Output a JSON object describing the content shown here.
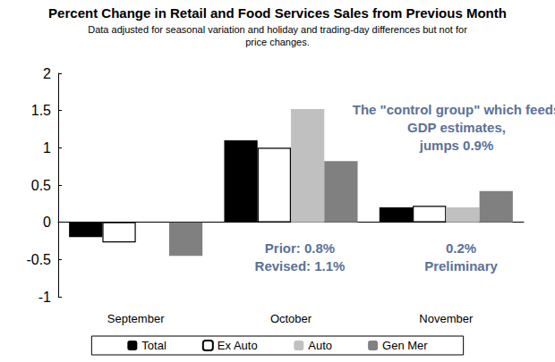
{
  "chart_data": {
    "type": "bar",
    "title": "Percent Change in Retail and Food Services Sales from Previous Month",
    "subtitle": "Data adjusted for seasonal variation and holiday and trading-day differences but not for\nprice changes.",
    "categories": [
      "September",
      "October",
      "November"
    ],
    "series": [
      {
        "name": "Total",
        "color": "#000000",
        "values": [
          -0.2,
          1.1,
          0.2
        ]
      },
      {
        "name": "Ex Auto",
        "color": "#ffffff",
        "values": [
          -0.27,
          1.0,
          0.22
        ]
      },
      {
        "name": "Auto",
        "color": "#c0c0c0",
        "values": [
          0,
          1.52,
          0.2
        ]
      },
      {
        "name": "Gen Mer",
        "color": "#808080",
        "values": [
          -0.45,
          0.82,
          0.42
        ]
      }
    ],
    "annotations": [
      {
        "text": "The \"control group\" which feeds\nGDP estimates,\njumps 0.9%",
        "color": "#5b7199"
      },
      {
        "text": "Prior: 0.8%\nRevised: 1.1%",
        "color": "#5b7199"
      },
      {
        "text": "0.2%\nPreliminary",
        "color": "#5b7199"
      }
    ],
    "ylim": [
      -1,
      2
    ],
    "yticks": [
      -1,
      -0.5,
      0,
      0.5,
      1,
      1.5,
      2
    ],
    "grid": false,
    "legend": "bottom"
  }
}
